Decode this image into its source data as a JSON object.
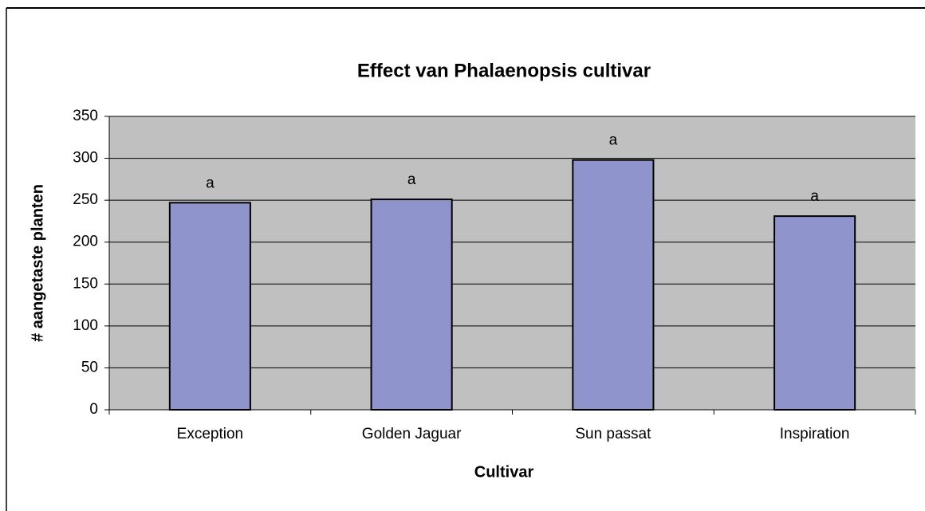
{
  "chart_data": {
    "type": "bar",
    "title": "Effect van Phalaenopsis cultivar",
    "x_label": "Cultivar",
    "y_label": "# aangetaste planten",
    "categories": [
      "Exception",
      "Golden Jaguar",
      "Sun passat",
      "Inspiration"
    ],
    "values": [
      247,
      251,
      298,
      231
    ],
    "annotations": [
      "a",
      "a",
      "a",
      "a"
    ],
    "color": "#8f94cc",
    "plot_background": "#c0c0c0",
    "ylim": [
      0,
      350
    ],
    "yticks": [
      0,
      50,
      100,
      150,
      200,
      250,
      300,
      350
    ],
    "grid": true
  }
}
